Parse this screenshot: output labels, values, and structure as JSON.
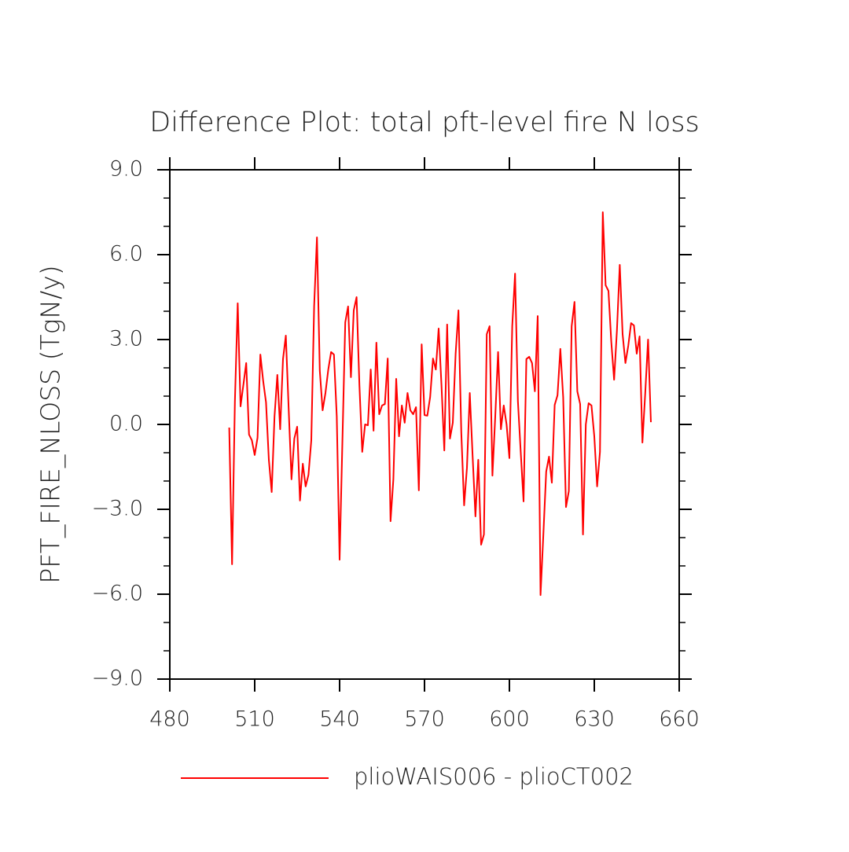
{
  "chart_data": {
    "type": "line",
    "title": "Difference Plot: total pft-level fire N loss",
    "y_label": "PFT_FIRE_NLOSS  (TgN/y)",
    "xlim": [
      480,
      660
    ],
    "xticks": [
      480,
      510,
      540,
      570,
      600,
      630,
      660
    ],
    "ylim": [
      -9,
      9
    ],
    "yticks": [
      {
        "value": -9,
        "label": "−9.0"
      },
      {
        "value": -6,
        "label": "−6.0"
      },
      {
        "value": -3,
        "label": "−3.0"
      },
      {
        "value": 0,
        "label": "0.0"
      },
      {
        "value": 3,
        "label": "3.0"
      },
      {
        "value": 6,
        "label": "6.0"
      },
      {
        "value": 9,
        "label": "9.0"
      }
    ],
    "yminorticks": [
      -8,
      -7,
      -5,
      -4,
      -2,
      -1,
      1,
      2,
      4,
      5,
      7,
      8
    ],
    "x": [
      501,
      502,
      503,
      504,
      505,
      506,
      507,
      508,
      509,
      510,
      511,
      512,
      513,
      514,
      515,
      516,
      517,
      518,
      519,
      520,
      521,
      522,
      523,
      524,
      525,
      526,
      527,
      528,
      529,
      530,
      531,
      532,
      533,
      534,
      535,
      536,
      537,
      538,
      539,
      540,
      541,
      542,
      543,
      544,
      545,
      546,
      547,
      548,
      549,
      550,
      551,
      552,
      553,
      554,
      555,
      556,
      557,
      558,
      559,
      560,
      561,
      562,
      563,
      564,
      565,
      566,
      567,
      568,
      569,
      570,
      571,
      572,
      573,
      574,
      575,
      576,
      577,
      578,
      579,
      580,
      581,
      582,
      583,
      584,
      585,
      586,
      587,
      588,
      589,
      590,
      591,
      592,
      593,
      594,
      595,
      596,
      597,
      598,
      599,
      600,
      601,
      602,
      603,
      604,
      605,
      606,
      607,
      608,
      609,
      610,
      611,
      612,
      613,
      614,
      615,
      616,
      617,
      618,
      619,
      620,
      621,
      622,
      623,
      624,
      625,
      626,
      627,
      628,
      629,
      630,
      631,
      632,
      633,
      634,
      635,
      636,
      637,
      638,
      639,
      640,
      641,
      642,
      643,
      644,
      645,
      646,
      647,
      648,
      649,
      650
    ],
    "series": [
      {
        "name": "plioWAIS006 - plioCT002",
        "color": "#ff0000",
        "values": [
          -0.11,
          -4.94,
          0.8,
          4.28,
          0.64,
          1.4,
          2.17,
          -0.36,
          -0.56,
          -1.08,
          -0.47,
          2.47,
          1.53,
          0.78,
          -1.25,
          -2.39,
          0.28,
          1.75,
          -0.17,
          2.31,
          3.14,
          0.56,
          -1.94,
          -0.5,
          -0.08,
          -2.69,
          -1.39,
          -2.19,
          -1.78,
          -0.56,
          4.17,
          6.61,
          1.9,
          0.5,
          1.11,
          1.94,
          2.56,
          2.47,
          0.28,
          -4.78,
          -0.56,
          3.61,
          4.17,
          1.67,
          4.03,
          4.5,
          1.39,
          -0.97,
          0,
          -0.03,
          1.94,
          -0.22,
          2.89,
          0.36,
          0.67,
          0.72,
          2.33,
          -3.42,
          -1.94,
          1.61,
          -0.42,
          0.67,
          0.06,
          1.11,
          0.5,
          0.36,
          0.61,
          -2.33,
          2.83,
          0.33,
          0.31,
          0.97,
          2.33,
          1.94,
          3.39,
          1.39,
          -0.92,
          3.53,
          -0.5,
          0.06,
          2.5,
          4.03,
          -0.28,
          -2.86,
          -1.53,
          1.11,
          -1.11,
          -3.25,
          -1.25,
          -4.25,
          -3.89,
          3.19,
          3.47,
          -1.81,
          0.28,
          2.56,
          -0.17,
          0.67,
          0,
          -1.19,
          3.47,
          5.33,
          0.83,
          -0.97,
          -2.72,
          2.31,
          2.39,
          2.17,
          1.17,
          3.83,
          -6.03,
          -3.89,
          -1.67,
          -1.14,
          -2.06,
          0.69,
          1.03,
          2.67,
          0.97,
          -2.92,
          -2.36,
          3.47,
          4.33,
          1.17,
          0.72,
          -3.89,
          0,
          0.75,
          0.67,
          -0.42,
          -2.19,
          -0.97,
          7.5,
          4.92,
          4.72,
          2.92,
          1.58,
          3.33,
          5.64,
          3.19,
          2.17,
          2.78,
          3.58,
          3.5,
          2.5,
          3.11,
          -0.64,
          1.11,
          3.0,
          0.08
        ]
      }
    ]
  }
}
